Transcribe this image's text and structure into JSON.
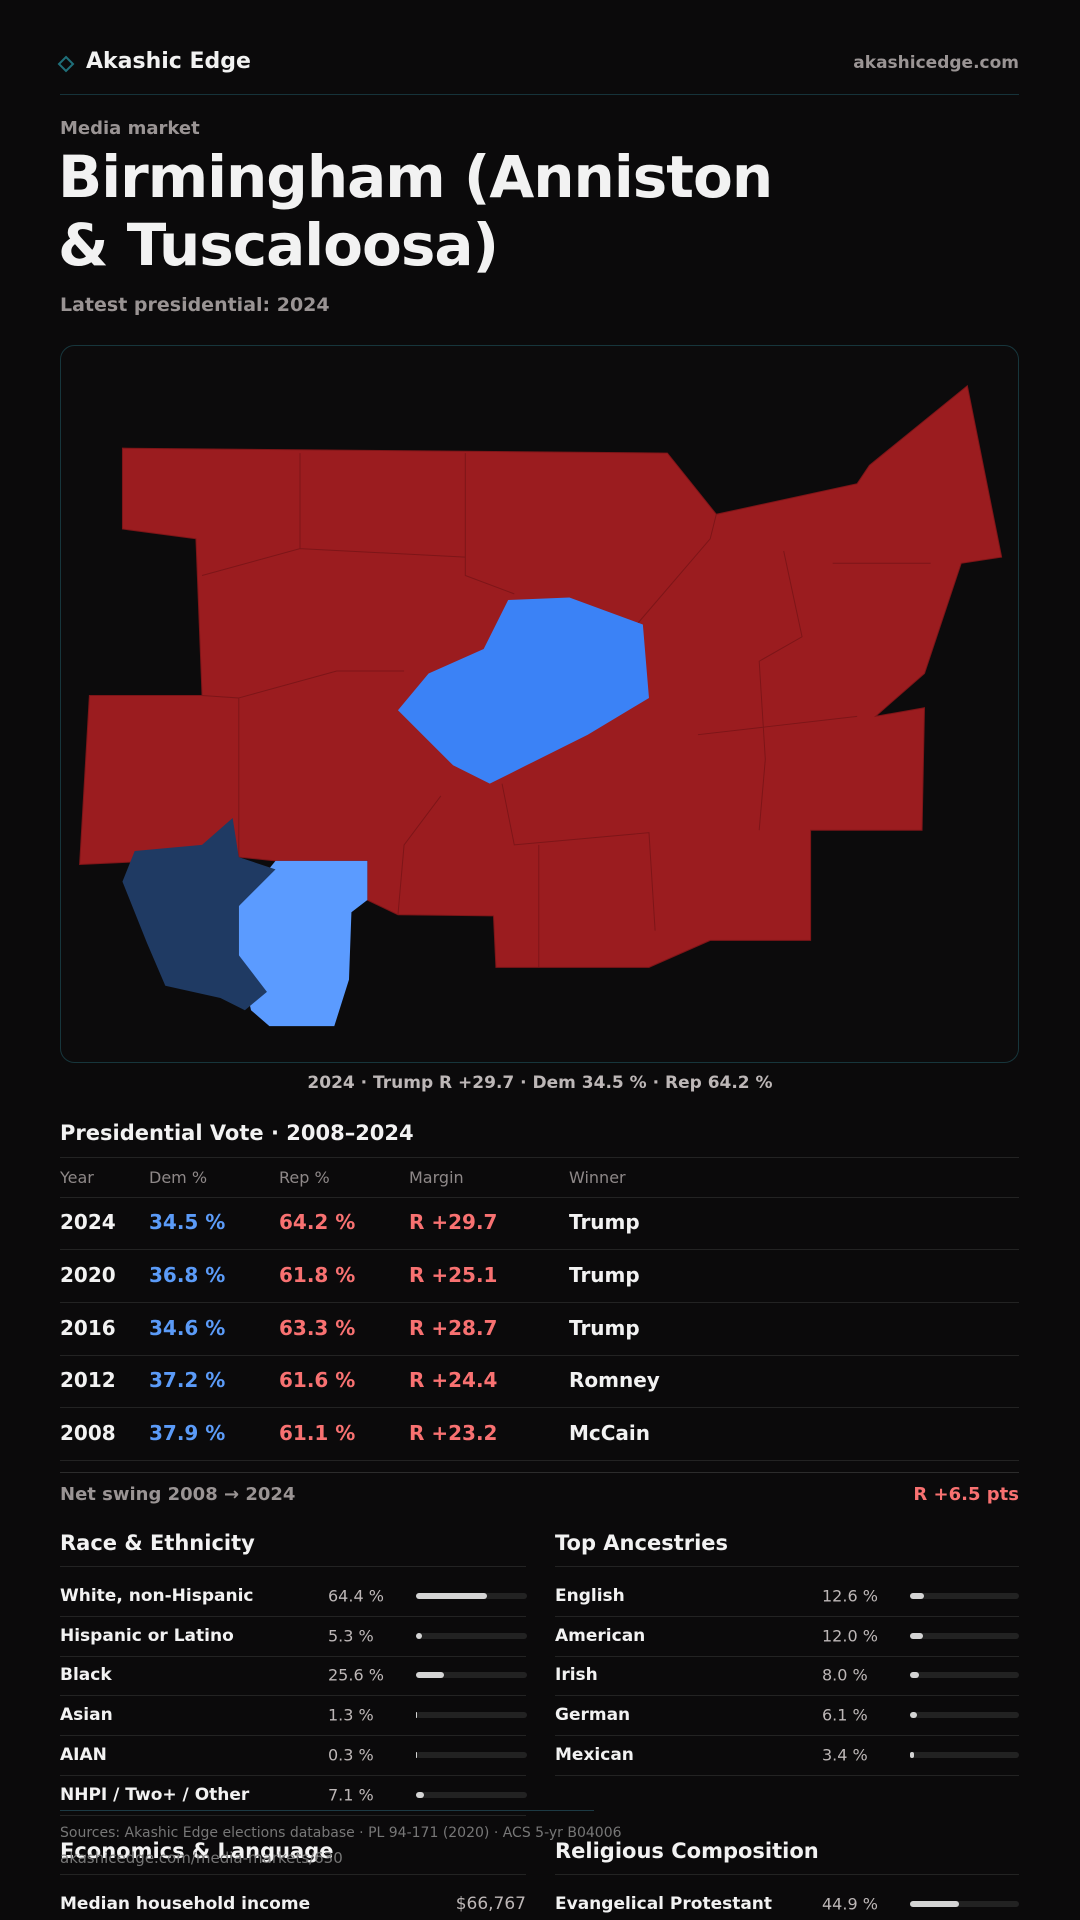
{
  "header": {
    "brand": "Akashic Edge",
    "site": "akashicedge.com"
  },
  "eyebrow": "Media market",
  "title": "Birmingham (Anniston & Tuscaloosa)",
  "latest": "Latest presidential: 2024",
  "map_caption": "2024 · Trump R +29.7 · Dem 34.5 % · Rep 64.2 %",
  "vote_table": {
    "title": "Presidential Vote · 2008–2024",
    "columns": [
      "Year",
      "Dem %",
      "Rep %",
      "Margin",
      "Winner"
    ],
    "rows": [
      [
        "2024",
        "34.5 %",
        "64.2 %",
        "R +29.7",
        "Trump"
      ],
      [
        "2020",
        "36.8 %",
        "61.8 %",
        "R +25.1",
        "Trump"
      ],
      [
        "2016",
        "34.6 %",
        "63.3 %",
        "R +28.7",
        "Trump"
      ],
      [
        "2012",
        "37.2 %",
        "61.6 %",
        "R +24.4",
        "Romney"
      ],
      [
        "2008",
        "37.9 %",
        "61.1 %",
        "R +23.2",
        "McCain"
      ]
    ]
  },
  "net_swing": {
    "label": "Net swing 2008 → 2024",
    "value": "R +6.5 pts"
  },
  "race": {
    "title": "Race & Ethnicity",
    "rows": [
      {
        "label": "White, non-Hispanic",
        "share": {
          "value": 64.4,
          "label": "64.4 %"
        }
      },
      {
        "label": "Hispanic or Latino",
        "share": {
          "value": 5.3,
          "label": "5.3 %"
        }
      },
      {
        "label": "Black",
        "share": {
          "value": 25.6,
          "label": "25.6 %"
        }
      },
      {
        "label": "Asian",
        "share": {
          "value": 1.3,
          "label": "1.3 %"
        }
      },
      {
        "label": "AIAN",
        "share": {
          "value": 0.3,
          "label": "0.3 %"
        }
      },
      {
        "label": "NHPI / Two+ / Other",
        "share": {
          "value": 7.1,
          "label": "7.1 %"
        }
      }
    ]
  },
  "ancestry": {
    "title": "Top Ancestries",
    "rows": [
      {
        "label": "English",
        "share": {
          "value": 12.6,
          "label": "12.6 %"
        }
      },
      {
        "label": "American",
        "share": {
          "value": 12.0,
          "label": "12.0 %"
        }
      },
      {
        "label": "Irish",
        "share": {
          "value": 8.0,
          "label": "8.0 %"
        }
      },
      {
        "label": "German",
        "share": {
          "value": 6.1,
          "label": "6.1 %"
        }
      },
      {
        "label": "Mexican",
        "share": {
          "value": 3.4,
          "label": "3.4 %"
        }
      }
    ]
  },
  "sources": "Sources: Akashic Edge elections database · PL 94-171 (2020) · ACS 5-yr B04006",
  "url": "akashicedge.com/media-markets/630",
  "economics": {
    "title": "Economics & Language",
    "rows": [
      {
        "label": "Median household income",
        "value": "$66,767"
      }
    ]
  },
  "religion": {
    "title": "Religious Composition",
    "rows": [
      {
        "label": "Evangelical Protestant",
        "share": {
          "value": 44.9,
          "label": "44.9 %"
        }
      }
    ]
  }
}
